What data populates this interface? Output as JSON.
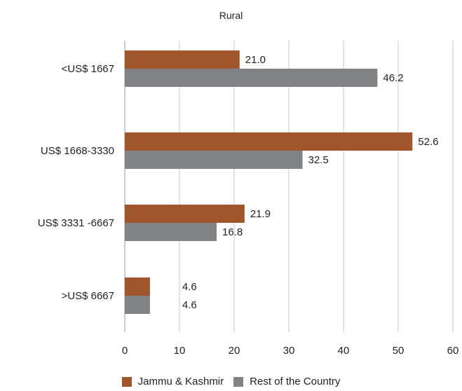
{
  "chart_data": {
    "type": "bar",
    "orientation": "horizontal",
    "title": "Rural",
    "categories": [
      "<US$ 1667",
      "US$ 1668-3330",
      "US$ 3331 -6667",
      ">US$ 6667"
    ],
    "series": [
      {
        "name": "Jammu & Kashmir",
        "color": "#a0562a",
        "values": [
          21.0,
          52.6,
          21.9,
          4.6
        ],
        "labels": [
          "21.0",
          "52.6",
          "21.9",
          "4.6"
        ]
      },
      {
        "name": "Rest of the Country",
        "color": "#808285",
        "values": [
          46.2,
          32.5,
          16.8,
          4.6
        ],
        "labels": [
          "46.2",
          "32.5",
          "16.8",
          "4.6"
        ]
      }
    ],
    "xlim": [
      0,
      60
    ],
    "xticks": [
      "0",
      "10",
      "20",
      "30",
      "40",
      "50",
      "60"
    ],
    "grid": true,
    "legend_position": "bottom"
  }
}
